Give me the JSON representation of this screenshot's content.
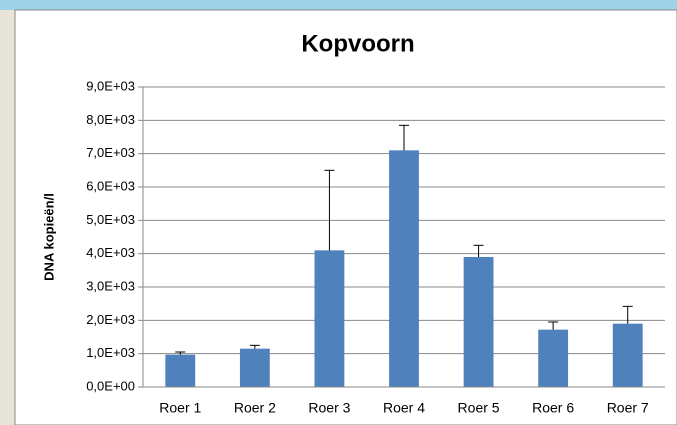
{
  "chart_data": {
    "type": "bar",
    "title": "Kopvoorn",
    "y_label": "DNA kopieën/l",
    "categories": [
      "Roer 1",
      "Roer 2",
      "Roer 3",
      "Roer 4",
      "Roer 5",
      "Roer 6",
      "Roer 7"
    ],
    "values": [
      970,
      1150,
      4100,
      7100,
      3900,
      1720,
      1900
    ],
    "errors": [
      80,
      100,
      2400,
      750,
      350,
      230,
      520
    ],
    "color": "#4f81bd",
    "ylim": [
      0,
      9000
    ],
    "yticks": [
      {
        "value": 0,
        "label": "0,0E+00"
      },
      {
        "value": 1000,
        "label": "1,0E+03"
      },
      {
        "value": 2000,
        "label": "2,0E+03"
      },
      {
        "value": 3000,
        "label": "3,0E+03"
      },
      {
        "value": 4000,
        "label": "4,0E+03"
      },
      {
        "value": 5000,
        "label": "5,0E+03"
      },
      {
        "value": 6000,
        "label": "6,0E+03"
      },
      {
        "value": 7000,
        "label": "7,0E+03"
      },
      {
        "value": 8000,
        "label": "8,0E+03"
      },
      {
        "value": 9000,
        "label": "9,0E+03"
      }
    ],
    "grid": true
  }
}
